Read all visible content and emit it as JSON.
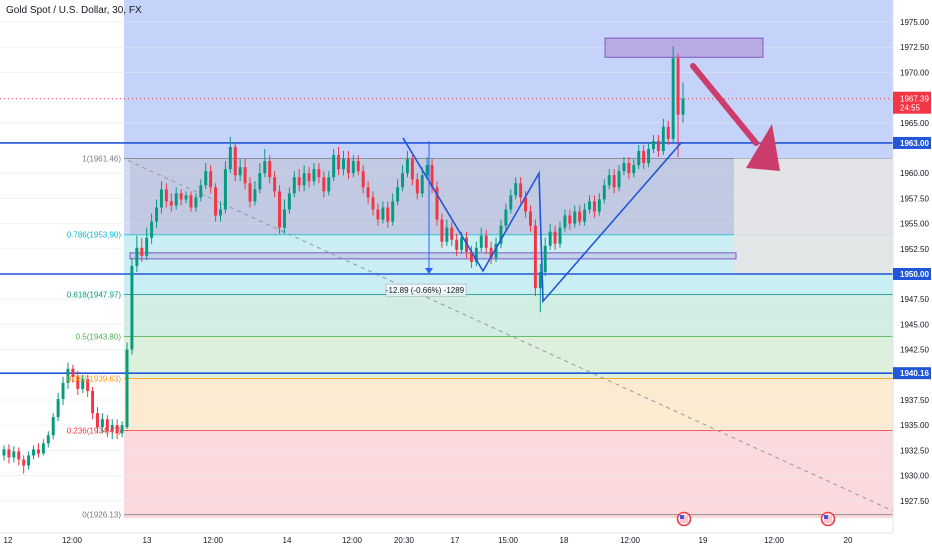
{
  "chart_data": {
    "type": "candlestick",
    "title": "Gold Spot / U.S. Dollar, 30, FX",
    "ylim": [
      1924.5,
      1977.3
    ],
    "y_ticks": [
      {
        "v": 1975,
        "t": "1975.00"
      },
      {
        "v": 1972.5,
        "t": "1972.50"
      },
      {
        "v": 1970,
        "t": "1970.00"
      },
      {
        "v": 1965,
        "t": "1965.00"
      },
      {
        "v": 1960,
        "t": "1960.00"
      },
      {
        "v": 1957.5,
        "t": "1957.50"
      },
      {
        "v": 1955,
        "t": "1955.00"
      },
      {
        "v": 1952.5,
        "t": "1952.50"
      },
      {
        "v": 1947.5,
        "t": "1947.50"
      },
      {
        "v": 1945,
        "t": "1945.00"
      },
      {
        "v": 1942.5,
        "t": "1942.50"
      },
      {
        "v": 1937.5,
        "t": "1937.50"
      },
      {
        "v": 1935,
        "t": "1935.00"
      },
      {
        "v": 1932.5,
        "t": "1932.50"
      },
      {
        "v": 1930,
        "t": "1930.00"
      },
      {
        "v": 1927.5,
        "t": "1927.50"
      }
    ],
    "x_labels": [
      "12",
      "12:00",
      "13",
      "12:00",
      "14",
      "12:00",
      "20:30",
      "17",
      "15:00",
      "18",
      "12:00",
      "19",
      "12:00",
      "20"
    ],
    "current_price": {
      "value": 1967.39,
      "label": "1967.39",
      "countdown": "24:55"
    },
    "horizontal_levels": [
      {
        "value": 1963.0,
        "label": "1963.00"
      },
      {
        "value": 1950.0,
        "label": "1950.00"
      },
      {
        "value": 1940.16,
        "label": "1940.16"
      }
    ],
    "fibonacci": [
      {
        "ratio": "1",
        "value": 1961.46,
        "label": "1(1961.46)",
        "color": "#787b86"
      },
      {
        "ratio": "0.786",
        "value": 1953.9,
        "label": "0.786(1953.90)",
        "color": "#00bcd4"
      },
      {
        "ratio": "0.618",
        "value": 1947.97,
        "label": "0.618(1947.97)",
        "color": "#089981"
      },
      {
        "ratio": "0.5",
        "value": 1943.8,
        "label": "0.5(1943.80)",
        "color": "#4caf50"
      },
      {
        "ratio": "0.382",
        "value": 1939.63,
        "label": "0.382(1939.63)",
        "color": "#ff9800"
      },
      {
        "ratio": "0.236",
        "value": 1934.47,
        "label": "0.236(1934.47)",
        "color": "#f23645"
      },
      {
        "ratio": "0",
        "value": 1926.13,
        "label": "0(1926.13)",
        "color": "#787b86"
      }
    ],
    "measure_label": "-12.89 (-0.66%) -1289",
    "candles": [
      [
        1932.0,
        1932.6,
        1931.5,
        1933.0
      ],
      [
        1932.6,
        1931.8,
        1931.2,
        1933.1
      ],
      [
        1931.8,
        1932.4,
        1931.3,
        1932.9
      ],
      [
        1932.4,
        1931.6,
        1931.0,
        1932.8
      ],
      [
        1931.6,
        1931.0,
        1930.2,
        1932.0
      ],
      [
        1931.0,
        1932.0,
        1930.6,
        1932.4
      ],
      [
        1932.0,
        1932.6,
        1931.6,
        1933.0
      ],
      [
        1932.6,
        1932.2,
        1931.8,
        1933.2
      ],
      [
        1932.2,
        1933.2,
        1932.0,
        1933.6
      ],
      [
        1933.2,
        1934.0,
        1932.8,
        1934.4
      ],
      [
        1934.0,
        1935.8,
        1933.6,
        1936.2
      ],
      [
        1935.8,
        1937.6,
        1935.4,
        1938.2
      ],
      [
        1937.6,
        1939.2,
        1937.0,
        1939.8
      ],
      [
        1939.2,
        1940.6,
        1938.6,
        1941.2
      ],
      [
        1940.6,
        1939.8,
        1939.2,
        1941.0
      ],
      [
        1939.8,
        1938.6,
        1938.0,
        1940.4
      ],
      [
        1938.6,
        1939.6,
        1938.2,
        1940.0
      ],
      [
        1939.6,
        1938.4,
        1937.8,
        1940.0
      ],
      [
        1938.4,
        1936.2,
        1935.6,
        1938.8
      ],
      [
        1936.2,
        1934.8,
        1934.2,
        1936.8
      ],
      [
        1934.8,
        1935.6,
        1934.2,
        1936.2
      ],
      [
        1935.6,
        1934.4,
        1933.8,
        1936.0
      ],
      [
        1934.4,
        1935.0,
        1933.6,
        1935.6
      ],
      [
        1935.0,
        1934.2,
        1933.6,
        1935.6
      ],
      [
        1934.2,
        1935.0,
        1933.8,
        1935.4
      ],
      [
        1934.8,
        1942.5,
        1934.6,
        1943.2
      ],
      [
        1942.5,
        1950.8,
        1942.0,
        1951.6
      ],
      [
        1950.8,
        1952.6,
        1950.2,
        1953.8
      ],
      [
        1952.6,
        1951.8,
        1951.2,
        1953.6
      ],
      [
        1951.8,
        1953.6,
        1951.4,
        1954.6
      ],
      [
        1953.6,
        1955.2,
        1953.0,
        1956.0
      ],
      [
        1955.2,
        1956.6,
        1954.6,
        1957.4
      ],
      [
        1956.6,
        1958.4,
        1956.0,
        1959.2
      ],
      [
        1958.4,
        1957.2,
        1956.6,
        1959.0
      ],
      [
        1957.2,
        1956.8,
        1956.2,
        1958.0
      ],
      [
        1956.8,
        1958.0,
        1956.4,
        1958.6
      ],
      [
        1958.0,
        1957.4,
        1956.8,
        1958.4
      ],
      [
        1957.4,
        1957.8,
        1957.0,
        1958.2
      ],
      [
        1957.8,
        1956.6,
        1956.2,
        1958.2
      ],
      [
        1956.6,
        1957.6,
        1956.2,
        1958.0
      ],
      [
        1957.6,
        1958.8,
        1957.2,
        1959.4
      ],
      [
        1958.8,
        1960.2,
        1958.4,
        1961.0
      ],
      [
        1960.2,
        1958.6,
        1958.0,
        1960.8
      ],
      [
        1958.6,
        1955.8,
        1955.2,
        1959.0
      ],
      [
        1955.8,
        1956.4,
        1955.2,
        1957.2
      ],
      [
        1956.4,
        1960.4,
        1956.0,
        1961.2
      ],
      [
        1960.4,
        1962.6,
        1960.0,
        1963.6
      ],
      [
        1962.6,
        1959.8,
        1959.2,
        1963.0
      ],
      [
        1959.8,
        1960.6,
        1959.2,
        1961.4
      ],
      [
        1960.6,
        1959.0,
        1958.4,
        1961.4
      ],
      [
        1959.0,
        1957.2,
        1956.6,
        1959.6
      ],
      [
        1957.2,
        1958.4,
        1956.8,
        1959.2
      ],
      [
        1958.4,
        1960.0,
        1958.0,
        1961.0
      ],
      [
        1960.0,
        1961.2,
        1959.6,
        1962.4
      ],
      [
        1961.2,
        1959.6,
        1959.0,
        1961.8
      ],
      [
        1959.6,
        1958.2,
        1957.6,
        1960.2
      ],
      [
        1958.2,
        1954.6,
        1954.0,
        1958.8
      ],
      [
        1954.6,
        1956.4,
        1954.0,
        1957.4
      ],
      [
        1956.4,
        1958.0,
        1956.0,
        1958.6
      ],
      [
        1958.0,
        1959.6,
        1957.6,
        1960.2
      ],
      [
        1959.6,
        1958.8,
        1958.2,
        1960.4
      ],
      [
        1958.8,
        1960.0,
        1958.2,
        1960.8
      ],
      [
        1960.0,
        1959.2,
        1958.6,
        1960.6
      ],
      [
        1959.2,
        1960.4,
        1958.8,
        1961.0
      ],
      [
        1960.4,
        1959.6,
        1959.0,
        1961.0
      ],
      [
        1959.6,
        1958.2,
        1957.6,
        1960.2
      ],
      [
        1958.2,
        1959.6,
        1957.8,
        1960.2
      ],
      [
        1959.6,
        1961.8,
        1959.2,
        1962.4
      ],
      [
        1961.8,
        1960.4,
        1959.8,
        1962.6
      ],
      [
        1960.4,
        1961.4,
        1959.8,
        1962.2
      ],
      [
        1961.4,
        1960.0,
        1959.4,
        1962.2
      ],
      [
        1960.0,
        1961.2,
        1959.6,
        1961.8
      ],
      [
        1961.2,
        1960.2,
        1959.8,
        1961.8
      ],
      [
        1960.2,
        1958.6,
        1958.0,
        1960.8
      ],
      [
        1958.6,
        1957.6,
        1957.0,
        1959.2
      ],
      [
        1957.6,
        1956.4,
        1955.8,
        1958.2
      ],
      [
        1956.4,
        1955.4,
        1954.8,
        1957.0
      ],
      [
        1955.4,
        1956.6,
        1955.0,
        1957.2
      ],
      [
        1956.6,
        1955.2,
        1954.6,
        1957.2
      ],
      [
        1955.2,
        1957.2,
        1954.8,
        1958.0
      ],
      [
        1957.2,
        1958.6,
        1956.8,
        1959.4
      ],
      [
        1958.6,
        1960.0,
        1958.2,
        1960.8
      ],
      [
        1960.0,
        1961.4,
        1959.6,
        1962.2
      ],
      [
        1961.4,
        1959.4,
        1958.8,
        1961.8
      ],
      [
        1959.4,
        1958.0,
        1957.4,
        1960.0
      ],
      [
        1958.0,
        1959.8,
        1957.6,
        1960.6
      ],
      [
        1959.8,
        1960.8,
        1959.4,
        1961.6
      ],
      [
        1960.8,
        1958.6,
        1958.0,
        1961.4
      ],
      [
        1958.6,
        1955.4,
        1954.8,
        1959.2
      ],
      [
        1955.4,
        1953.2,
        1952.6,
        1956.0
      ],
      [
        1953.2,
        1954.6,
        1952.8,
        1955.4
      ],
      [
        1954.6,
        1953.4,
        1952.8,
        1955.2
      ],
      [
        1953.4,
        1952.4,
        1951.8,
        1954.0
      ],
      [
        1952.4,
        1953.6,
        1952.0,
        1954.2
      ],
      [
        1953.6,
        1952.2,
        1951.6,
        1954.2
      ],
      [
        1952.2,
        1951.2,
        1950.6,
        1952.8
      ],
      [
        1951.2,
        1952.6,
        1950.8,
        1953.2
      ],
      [
        1952.6,
        1953.8,
        1952.2,
        1954.6
      ],
      [
        1953.8,
        1952.6,
        1952.0,
        1954.4
      ],
      [
        1952.6,
        1951.6,
        1951.0,
        1953.2
      ],
      [
        1951.6,
        1953.0,
        1951.2,
        1953.6
      ],
      [
        1953.0,
        1954.8,
        1952.6,
        1955.4
      ],
      [
        1954.8,
        1956.4,
        1954.4,
        1957.0
      ],
      [
        1956.4,
        1957.8,
        1956.0,
        1958.4
      ],
      [
        1957.8,
        1959.0,
        1957.4,
        1959.6
      ],
      [
        1959.0,
        1957.6,
        1957.0,
        1959.6
      ],
      [
        1957.6,
        1956.2,
        1955.6,
        1958.2
      ],
      [
        1956.2,
        1954.8,
        1954.2,
        1956.8
      ],
      [
        1954.8,
        1948.6,
        1947.8,
        1955.4
      ],
      [
        1948.6,
        1950.2,
        1946.2,
        1951.0
      ],
      [
        1950.2,
        1952.8,
        1949.8,
        1953.6
      ],
      [
        1952.8,
        1954.2,
        1952.4,
        1955.0
      ],
      [
        1954.2,
        1953.0,
        1952.4,
        1954.8
      ],
      [
        1953.0,
        1954.6,
        1952.6,
        1955.2
      ],
      [
        1954.6,
        1955.8,
        1954.2,
        1956.4
      ],
      [
        1955.8,
        1955.0,
        1954.4,
        1956.4
      ],
      [
        1955.0,
        1956.2,
        1954.6,
        1956.8
      ],
      [
        1956.2,
        1955.2,
        1954.8,
        1956.8
      ],
      [
        1955.2,
        1956.4,
        1954.8,
        1957.0
      ],
      [
        1956.4,
        1957.2,
        1956.0,
        1957.8
      ],
      [
        1957.2,
        1956.2,
        1955.6,
        1957.8
      ],
      [
        1956.2,
        1957.4,
        1955.8,
        1958.0
      ],
      [
        1957.4,
        1958.8,
        1957.0,
        1959.4
      ],
      [
        1958.8,
        1959.8,
        1958.4,
        1960.4
      ],
      [
        1959.8,
        1958.6,
        1958.0,
        1960.4
      ],
      [
        1958.6,
        1960.2,
        1958.2,
        1960.8
      ],
      [
        1960.2,
        1961.0,
        1959.8,
        1961.6
      ],
      [
        1961.0,
        1960.0,
        1959.4,
        1961.6
      ],
      [
        1960.0,
        1960.8,
        1959.6,
        1961.4
      ],
      [
        1960.8,
        1962.2,
        1960.4,
        1962.8
      ],
      [
        1962.2,
        1961.0,
        1960.4,
        1962.8
      ],
      [
        1961.0,
        1962.4,
        1960.6,
        1963.0
      ],
      [
        1962.4,
        1963.2,
        1962.0,
        1963.8
      ],
      [
        1963.2,
        1962.2,
        1961.6,
        1963.8
      ],
      [
        1962.2,
        1964.6,
        1961.8,
        1965.4
      ],
      [
        1964.6,
        1963.4,
        1962.8,
        1965.2
      ],
      [
        1963.4,
        1971.4,
        1963.0,
        1972.6
      ],
      [
        1971.4,
        1965.8,
        1961.6,
        1971.8
      ],
      [
        1965.8,
        1967.4,
        1965.0,
        1969.0
      ]
    ]
  }
}
